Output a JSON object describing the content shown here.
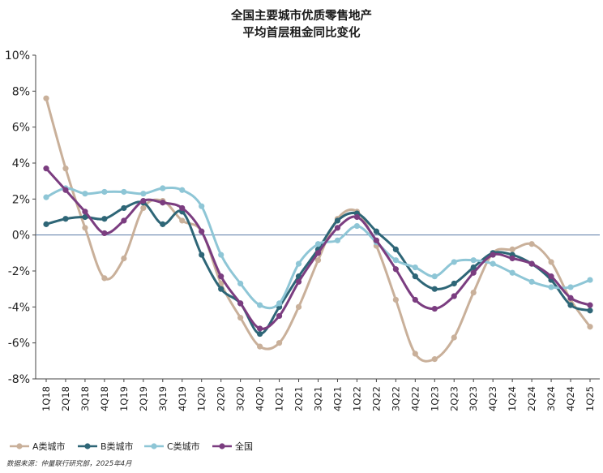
{
  "chart_data": {
    "type": "line",
    "title_line1": "全国主要城市优质零售地产",
    "title_line2": "平均首层租金同比变化",
    "ylim": [
      -8,
      10
    ],
    "yticks": [
      "10%",
      "8%",
      "6%",
      "4%",
      "2%",
      "0%",
      "-2%",
      "-4%",
      "-6%",
      "-8%"
    ],
    "ytick_values": [
      10,
      8,
      6,
      4,
      2,
      0,
      -2,
      -4,
      -6,
      -8
    ],
    "categories": [
      "1Q18",
      "2Q18",
      "3Q18",
      "4Q18",
      "1Q19",
      "2Q19",
      "3Q19",
      "4Q19",
      "1Q20",
      "2Q20",
      "3Q20",
      "4Q20",
      "1Q21",
      "2Q21",
      "3Q21",
      "4Q21",
      "1Q22",
      "2Q22",
      "3Q22",
      "4Q22",
      "1Q23",
      "2Q23",
      "3Q23",
      "4Q23",
      "1Q24",
      "2Q24",
      "3Q24",
      "4Q24",
      "1Q25"
    ],
    "series": [
      {
        "name": "A类城市",
        "color": "#c9b09a",
        "values": [
          7.6,
          3.7,
          0.4,
          -2.4,
          -1.3,
          1.5,
          1.9,
          0.8,
          0.2,
          -2.7,
          -4.6,
          -6.2,
          -6.0,
          -4.0,
          -1.4,
          0.9,
          1.3,
          -0.6,
          -3.6,
          -6.6,
          -6.9,
          -5.7,
          -3.2,
          -1.0,
          -0.8,
          -0.5,
          -1.5,
          -3.6,
          -5.1
        ]
      },
      {
        "name": "B类城市",
        "color": "#2e6677",
        "values": [
          0.6,
          0.9,
          1.0,
          0.9,
          1.5,
          1.8,
          0.6,
          1.3,
          -1.1,
          -3.0,
          -3.8,
          -5.5,
          -4.0,
          -2.3,
          -0.8,
          0.8,
          1.2,
          0.2,
          -0.8,
          -2.3,
          -3.0,
          -2.7,
          -1.8,
          -1.0,
          -1.1,
          -1.6,
          -2.5,
          -3.9,
          -4.2
        ]
      },
      {
        "name": "C类城市",
        "color": "#8ec6d6",
        "values": [
          2.1,
          2.6,
          2.3,
          2.4,
          2.4,
          2.3,
          2.6,
          2.5,
          1.6,
          -1.1,
          -2.7,
          -3.9,
          -3.8,
          -1.6,
          -0.5,
          -0.3,
          0.5,
          -0.4,
          -1.4,
          -1.8,
          -2.3,
          -1.5,
          -1.4,
          -1.6,
          -2.1,
          -2.6,
          -2.9,
          -2.9,
          -2.5
        ]
      },
      {
        "name": "全国",
        "color": "#7b3d80",
        "values": [
          3.7,
          2.5,
          1.3,
          0.1,
          0.8,
          1.9,
          1.8,
          1.5,
          0.2,
          -2.3,
          -3.8,
          -5.2,
          -4.5,
          -2.6,
          -1.0,
          0.4,
          1.0,
          -0.3,
          -1.9,
          -3.6,
          -4.1,
          -3.4,
          -2.1,
          -1.1,
          -1.3,
          -1.6,
          -2.3,
          -3.5,
          -3.9
        ]
      }
    ],
    "legend_position": "bottom-left",
    "source": "数据来源：仲量联行研究部，2025年4月"
  }
}
